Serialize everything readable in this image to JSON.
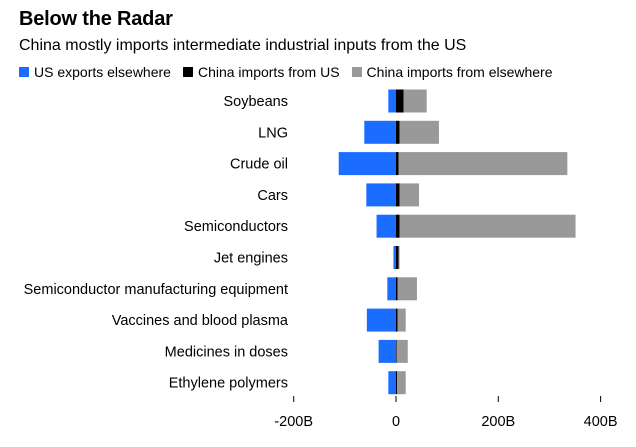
{
  "chart_data": {
    "type": "bar",
    "orientation": "horizontal",
    "stacked": true,
    "title": "Below the Radar",
    "subtitle": "China mostly imports intermediate industrial inputs from the US",
    "categories": [
      "Soybeans",
      "LNG",
      "Crude oil",
      "Cars",
      "Semiconductors",
      "Jet engines",
      "Semiconductor manufacturing equipment",
      "Vaccines and blood plasma",
      "Medicines in doses",
      "Ethylene polymers"
    ],
    "series": [
      {
        "name": "US exports elsewhere",
        "color": "#1a6dff",
        "direction": "negative",
        "values": [
          -15,
          -62,
          -112,
          -58,
          -38,
          -5,
          -17,
          -57,
          -34,
          -15
        ]
      },
      {
        "name": "China imports from US",
        "color": "#000000",
        "values": [
          15,
          7,
          5,
          7,
          7,
          5,
          3,
          3,
          1,
          2
        ]
      },
      {
        "name": "China imports from elsewhere",
        "color": "#999999",
        "values": [
          45,
          77,
          330,
          38,
          344,
          2,
          38,
          16,
          22,
          17
        ]
      }
    ],
    "xlim": [
      -200,
      400
    ],
    "xticks": [
      -200,
      0,
      200,
      400
    ],
    "xtick_labels": [
      "-200B",
      "0",
      "200B",
      "400B"
    ],
    "grid": false,
    "legend_position": "top-left"
  }
}
